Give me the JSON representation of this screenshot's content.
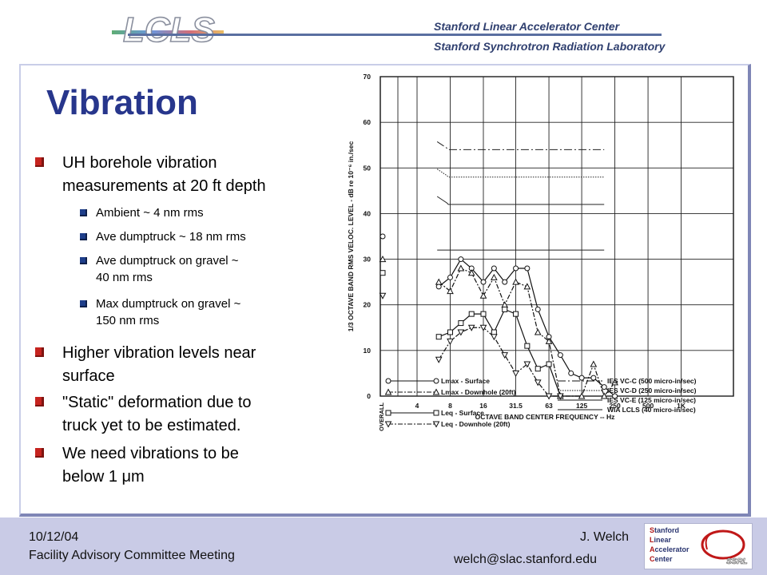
{
  "header": {
    "logo_text": "LCLS",
    "org_line1": "Stanford Linear Accelerator Center",
    "org_line2": "Stanford Synchrotron Radiation Laboratory"
  },
  "slide": {
    "title": "Vibration",
    "bullets": [
      {
        "lines": [
          "UH borehole vibration",
          "measurements at 20 ft depth"
        ]
      },
      {
        "lines": [
          "Higher vibration levels near",
          "surface"
        ]
      },
      {
        "lines": [
          "\"Static\" deformation due to",
          "truck yet to be estimated."
        ]
      },
      {
        "lines": [
          "We need vibrations to be",
          "below 1 μm"
        ]
      }
    ],
    "subbullets": [
      {
        "lines": [
          "Ambient ~ 4 nm rms"
        ]
      },
      {
        "lines": [
          "Ave dumptruck ~ 18 nm rms"
        ]
      },
      {
        "lines": [
          "Ave dumptruck on gravel ~",
          "40 nm rms"
        ]
      },
      {
        "lines": [
          "Max dumptruck on gravel ~",
          "150 nm rms"
        ]
      }
    ]
  },
  "chart_data": {
    "type": "line",
    "xlabel": "OCTAVE BAND CENTER FREQUENCY -- Hz",
    "ylabel": "1/3 OCTAVE BAND RMS VELOC. LEVEL - dB re 10⁻⁶ in./sec",
    "ylim": [
      0,
      70
    ],
    "yticks": [
      0,
      10,
      20,
      30,
      40,
      50,
      60,
      70
    ],
    "xtick_labels": [
      "OVERALL",
      "4",
      "8",
      "16",
      "31.5",
      "63",
      "125",
      "250",
      "500",
      "1K"
    ],
    "grid": true,
    "overall": {
      "Lmax - Surface": 35,
      "Lmax - Downhole (20ft)": 30,
      "Leq - Surface": 27,
      "Leq - Downhole (20ft)": 22
    },
    "series": [
      {
        "name": "Lmax - Surface",
        "marker": "circle",
        "points": [
          [
            6.3,
            24
          ],
          [
            8,
            26
          ],
          [
            10,
            30
          ],
          [
            12.5,
            28
          ],
          [
            16,
            25
          ],
          [
            20,
            28
          ],
          [
            25,
            25
          ],
          [
            31.5,
            28
          ],
          [
            40,
            28
          ],
          [
            50,
            19
          ],
          [
            63,
            13
          ],
          [
            80,
            9
          ],
          [
            100,
            5
          ],
          [
            125,
            4
          ],
          [
            160,
            4
          ],
          [
            200,
            2
          ],
          [
            250,
            0
          ]
        ]
      },
      {
        "name": "Lmax - Downhole (20ft)",
        "marker": "triangle",
        "points": [
          [
            6.3,
            25
          ],
          [
            8,
            23
          ],
          [
            10,
            28
          ],
          [
            12.5,
            27
          ],
          [
            16,
            22
          ],
          [
            20,
            26
          ],
          [
            25,
            20
          ],
          [
            31.5,
            25
          ],
          [
            40,
            24
          ],
          [
            50,
            14
          ],
          [
            63,
            12
          ],
          [
            80,
            0
          ],
          [
            125,
            0
          ],
          [
            160,
            7
          ],
          [
            200,
            0
          ],
          [
            250,
            3
          ]
        ]
      },
      {
        "name": "Leq - Surface",
        "marker": "square",
        "points": [
          [
            6.3,
            13
          ],
          [
            8,
            14
          ],
          [
            10,
            16
          ],
          [
            12.5,
            18
          ],
          [
            16,
            18
          ],
          [
            20,
            14
          ],
          [
            25,
            19
          ],
          [
            31.5,
            18
          ],
          [
            40,
            11
          ],
          [
            50,
            6
          ],
          [
            63,
            7
          ],
          [
            80,
            0
          ]
        ]
      },
      {
        "name": "Leq - Downhole (20ft)",
        "marker": "inverted-triangle",
        "points": [
          [
            6.3,
            8
          ],
          [
            8,
            12
          ],
          [
            10,
            14
          ],
          [
            12.5,
            15
          ],
          [
            16,
            15
          ],
          [
            20,
            13
          ],
          [
            25,
            9
          ],
          [
            31.5,
            5
          ],
          [
            40,
            7
          ],
          [
            50,
            3
          ],
          [
            63,
            0
          ],
          [
            80,
            0
          ]
        ]
      }
    ],
    "criteria": [
      {
        "name": "IES VC-C (500 micro-in/sec)",
        "style": "dash-dot",
        "value": 54
      },
      {
        "name": "IES VC-D (250 micro-in/sec)",
        "style": "dotted",
        "value": 48
      },
      {
        "name": "IES VC-E (125 micro-in/sec)",
        "style": "solid",
        "value": 42
      },
      {
        "name": "WIA LCLS (40 micro-in/sec)",
        "style": "solid",
        "value": 32
      }
    ]
  },
  "footer": {
    "date": "10/12/04",
    "meeting": "Facility Advisory Committee Meeting",
    "author": "J. Welch",
    "email": "welch@slac.stanford.edu",
    "logo_lines": [
      "tanford",
      "inear",
      "ccelerator",
      "enter"
    ],
    "logo_initials": [
      "S",
      "L",
      "A",
      "C"
    ],
    "logo_ssrl": "SSRL"
  },
  "colors": {
    "title": "#27368c",
    "bullet_marker": "#c6231e",
    "subbullet_marker": "#1e3e8a",
    "footer_bg": "#c9cbe6"
  }
}
